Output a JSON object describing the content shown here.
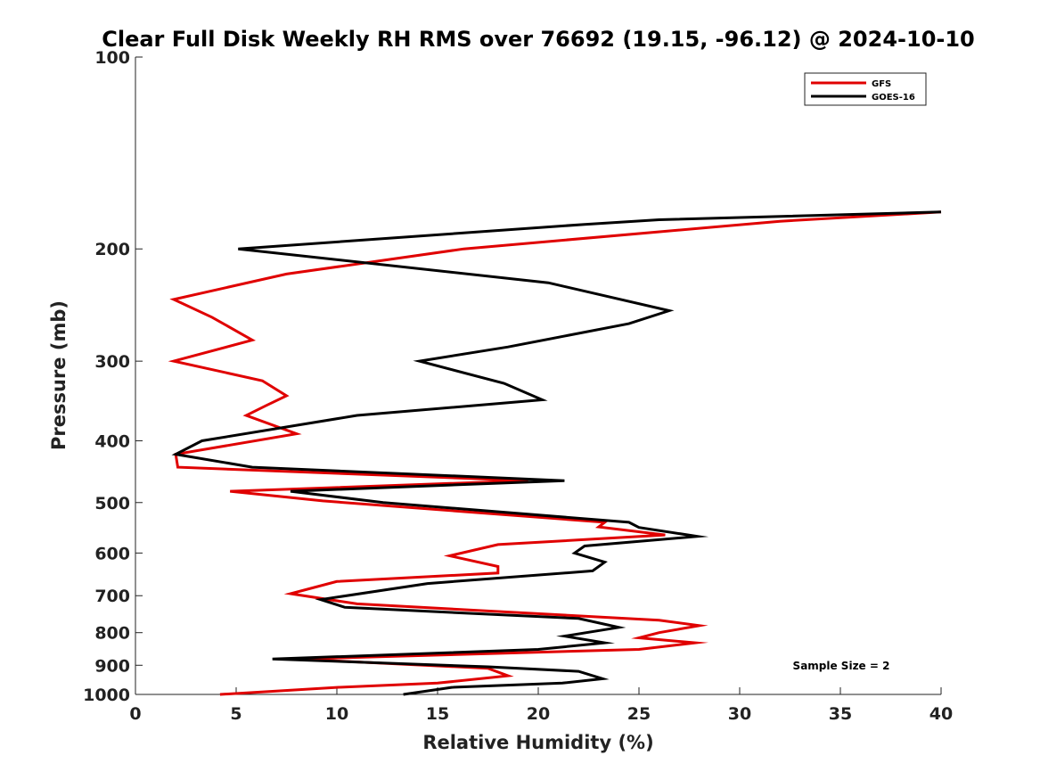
{
  "chart_data": {
    "type": "line",
    "title": "Clear Full Disk Weekly RH RMS over 76692 (19.15, -96.12) @ 2024-10-10",
    "xlabel": "Relative Humidity (%)",
    "ylabel": "Pressure (mb)",
    "xlim": [
      0,
      40
    ],
    "ylim": [
      100,
      1000
    ],
    "y_scale": "log",
    "y_reversed": true,
    "x_ticks": [
      "0",
      "5",
      "10",
      "15",
      "20",
      "25",
      "30",
      "35",
      "40"
    ],
    "y_ticks": [
      "100",
      "200",
      "300",
      "400",
      "500",
      "600",
      "700",
      "800",
      "900",
      "1000"
    ],
    "legend_position": "top-right",
    "annotation": "Sample Size = 2",
    "series": [
      {
        "name": "GFS",
        "color": "#e00000",
        "points": [
          [
            40.0,
            175
          ],
          [
            32.0,
            181
          ],
          [
            16.3,
            200
          ],
          [
            7.5,
            219
          ],
          [
            1.9,
            240
          ],
          [
            3.8,
            256
          ],
          [
            5.8,
            278
          ],
          [
            1.9,
            300
          ],
          [
            6.3,
            322
          ],
          [
            7.5,
            340
          ],
          [
            6.5,
            352
          ],
          [
            5.5,
            365
          ],
          [
            8.0,
            390
          ],
          [
            2.0,
            420
          ],
          [
            2.1,
            440
          ],
          [
            19.5,
            462
          ],
          [
            4.7,
            480
          ],
          [
            9.3,
            497
          ],
          [
            23.3,
            537
          ],
          [
            23.0,
            546
          ],
          [
            26.3,
            562
          ],
          [
            18.0,
            582
          ],
          [
            15.6,
            606
          ],
          [
            18.0,
            630
          ],
          [
            18.0,
            645
          ],
          [
            10.0,
            665
          ],
          [
            7.7,
            695
          ],
          [
            11.0,
            721
          ],
          [
            26.0,
            765
          ],
          [
            28.0,
            780
          ],
          [
            26.0,
            800
          ],
          [
            25.0,
            815
          ],
          [
            27.8,
            830
          ],
          [
            25.0,
            850
          ],
          [
            8.0,
            880
          ],
          [
            17.5,
            910
          ],
          [
            18.5,
            935
          ],
          [
            15.0,
            960
          ],
          [
            10.0,
            975
          ],
          [
            4.2,
            1000
          ]
        ]
      },
      {
        "name": "GOES-16",
        "color": "#000000",
        "points": [
          [
            40.0,
            175
          ],
          [
            26.0,
            180
          ],
          [
            22.3,
            183
          ],
          [
            5.1,
            200
          ],
          [
            20.5,
            226
          ],
          [
            26.5,
            250
          ],
          [
            24.5,
            262
          ],
          [
            18.5,
            285
          ],
          [
            14.1,
            300
          ],
          [
            18.3,
            325
          ],
          [
            20.2,
            345
          ],
          [
            11.0,
            365
          ],
          [
            3.3,
            400
          ],
          [
            2.0,
            420
          ],
          [
            5.8,
            440
          ],
          [
            21.3,
            462
          ],
          [
            7.7,
            480
          ],
          [
            12.3,
            500
          ],
          [
            24.5,
            537
          ],
          [
            25.0,
            547
          ],
          [
            27.9,
            565
          ],
          [
            22.3,
            585
          ],
          [
            21.8,
            600
          ],
          [
            23.3,
            620
          ],
          [
            22.7,
            640
          ],
          [
            14.5,
            670
          ],
          [
            9.2,
            710
          ],
          [
            10.4,
            730
          ],
          [
            22.0,
            760
          ],
          [
            24.0,
            785
          ],
          [
            21.3,
            810
          ],
          [
            23.3,
            830
          ],
          [
            20.0,
            850
          ],
          [
            6.8,
            880
          ],
          [
            17.5,
            905
          ],
          [
            22.0,
            920
          ],
          [
            23.2,
            945
          ],
          [
            21.2,
            960
          ],
          [
            15.7,
            975
          ],
          [
            13.3,
            1000
          ]
        ]
      }
    ]
  }
}
